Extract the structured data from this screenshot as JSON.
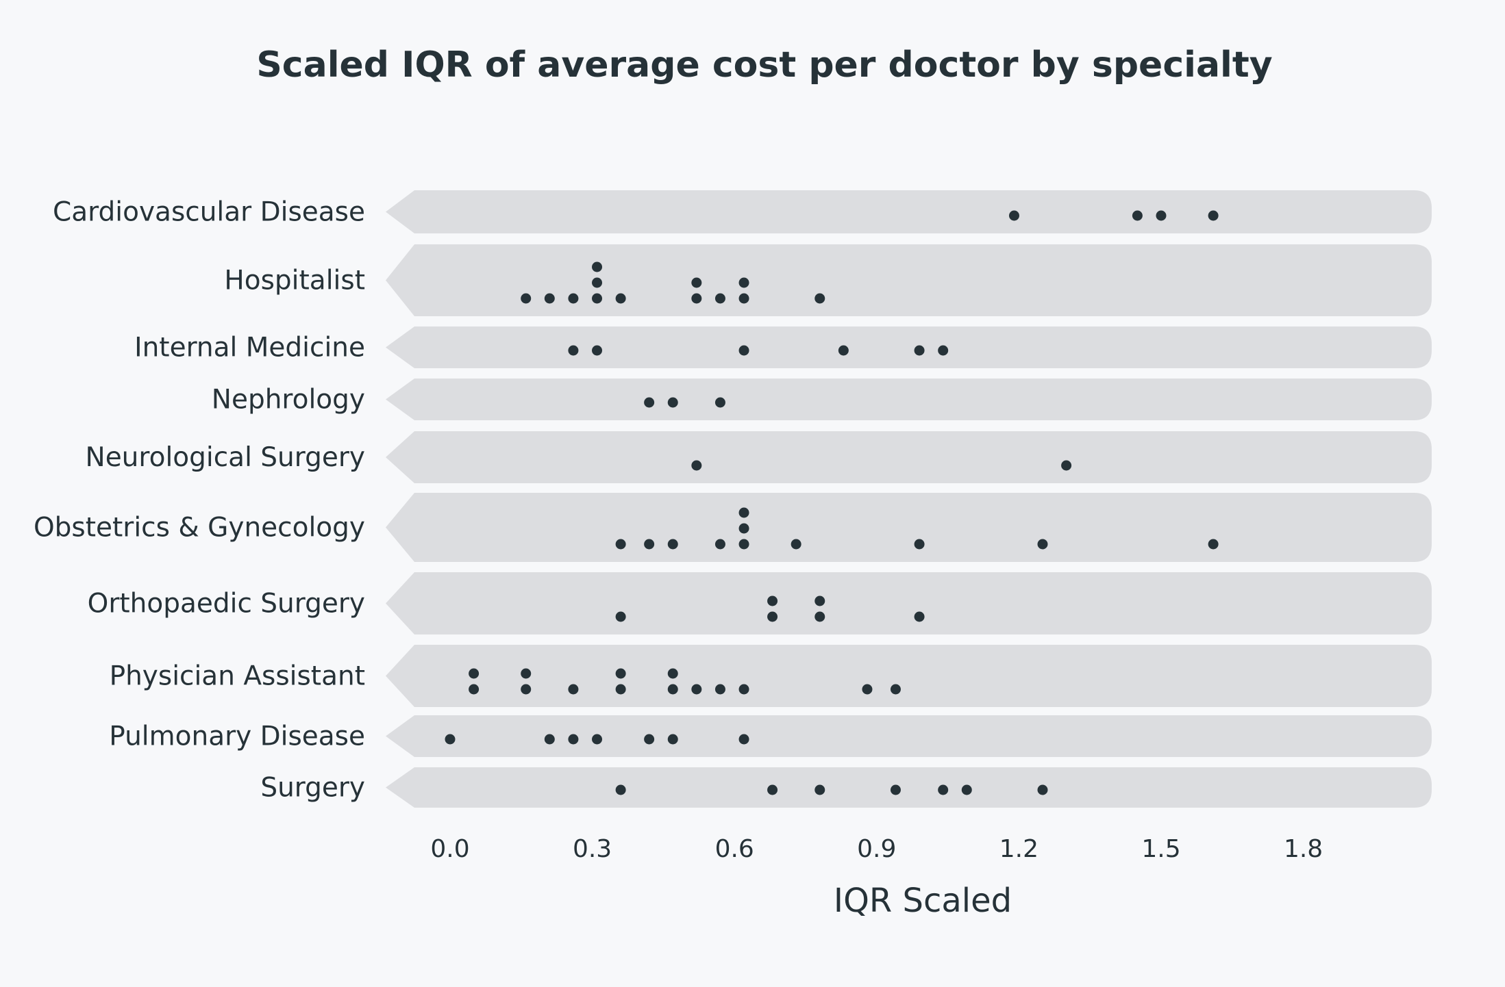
{
  "chart_data": {
    "type": "scatter",
    "subtype": "dot-plot",
    "title": "Scaled IQR of average cost per doctor by specialty",
    "xlabel": "IQR Scaled",
    "ylabel": "",
    "xlim": [
      -0.04,
      2.08
    ],
    "xticks": [
      0.0,
      0.3,
      0.6,
      0.9,
      1.2,
      1.5,
      1.8
    ],
    "xtick_labels": [
      "0.0",
      "0.3",
      "0.6",
      "0.9",
      "1.2",
      "1.5",
      "1.8"
    ],
    "grid": false,
    "legend": "none",
    "colors": {
      "background": "#f7f8fa",
      "band": "#dcdde0",
      "point": "#263238",
      "text": "#263238"
    },
    "categories": [
      "Cardiovascular Disease",
      "Hospitalist",
      "Internal Medicine",
      "Nephrology",
      "Neurological Surgery",
      "Obstetrics & Gynecology",
      "Orthopaedic Surgery",
      "Physician Assistant",
      "Pulmonary Disease",
      "Surgery"
    ],
    "values": [
      [
        1.19,
        1.45,
        1.5,
        1.61
      ],
      [
        0.16,
        0.21,
        0.26,
        0.31,
        0.31,
        0.31,
        0.36,
        0.52,
        0.52,
        0.57,
        0.62,
        0.62,
        0.78
      ],
      [
        0.26,
        0.31,
        0.62,
        0.83,
        0.99,
        1.04
      ],
      [
        0.42,
        0.47,
        0.57
      ],
      [
        0.52,
        1.3
      ],
      [
        0.36,
        0.42,
        0.47,
        0.57,
        0.62,
        0.62,
        0.62,
        0.73,
        0.99,
        1.25,
        1.61
      ],
      [
        0.36,
        0.68,
        0.68,
        0.78,
        0.78,
        0.99
      ],
      [
        0.05,
        0.05,
        0.16,
        0.16,
        0.26,
        0.36,
        0.36,
        0.47,
        0.47,
        0.52,
        0.57,
        0.62,
        0.88,
        0.94
      ],
      [
        0.0,
        0.21,
        0.26,
        0.31,
        0.42,
        0.47,
        0.62
      ],
      [
        0.36,
        0.68,
        0.78,
        0.94,
        1.04,
        1.09,
        1.25
      ]
    ]
  }
}
